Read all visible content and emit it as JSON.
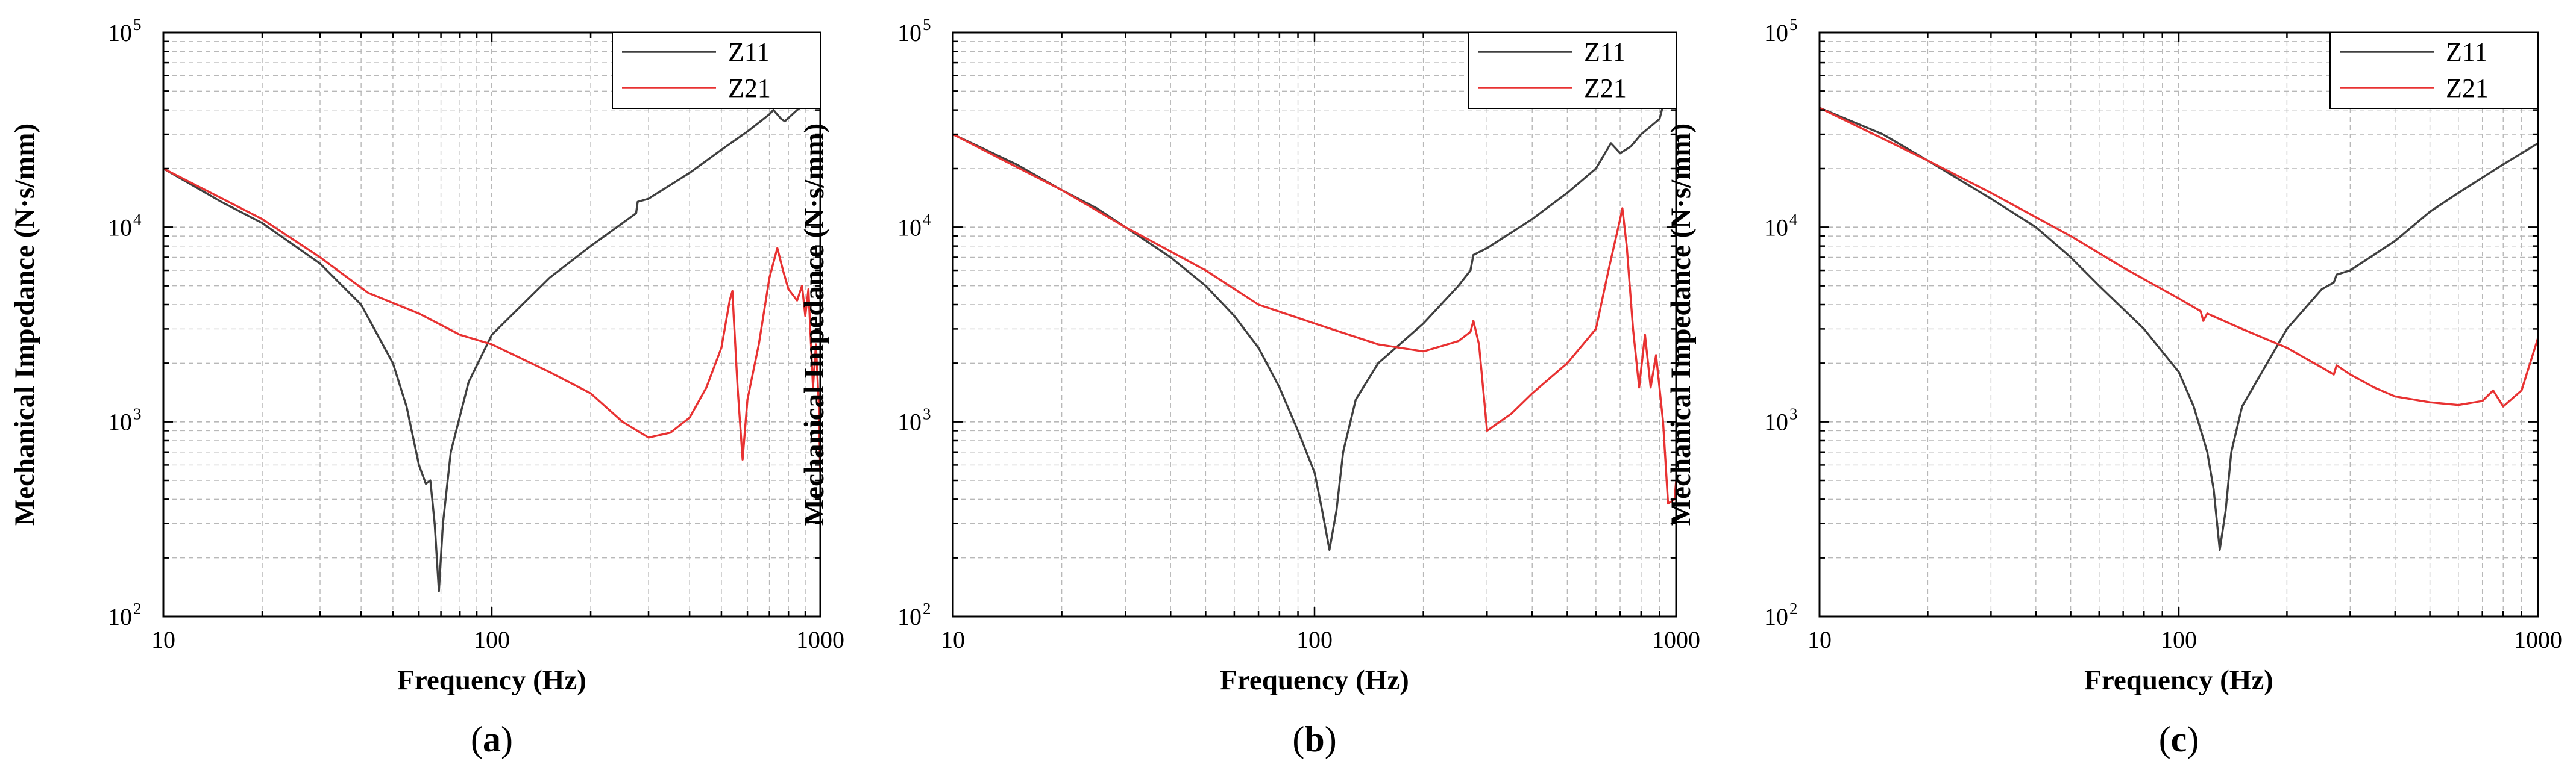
{
  "colors": {
    "Z11": "#404040",
    "Z21": "#e83232",
    "grid": "#b8b8b8",
    "axis": "#000000"
  },
  "panel_labels": [
    {
      "open": "(",
      "letter": "a",
      "close": ")"
    },
    {
      "open": "(",
      "letter": "b",
      "close": ")"
    },
    {
      "open": "(",
      "letter": "c",
      "close": ")"
    }
  ],
  "chart_data": [
    {
      "type": "line",
      "xlabel": "Frequency (Hz)",
      "ylabel": "Mechanical Impedance (N·s/mm)",
      "xscale": "log",
      "yscale": "log",
      "xlim": [
        10,
        1000
      ],
      "ylim": [
        100,
        100000
      ],
      "x_ticks": [
        "10",
        "100",
        "1000"
      ],
      "y_ticks": [
        {
          "base": "10",
          "exp": "2"
        },
        {
          "base": "10",
          "exp": "3"
        },
        {
          "base": "10",
          "exp": "4"
        },
        {
          "base": "10",
          "exp": "5"
        }
      ],
      "grid": "dashed major and minor",
      "legend": "top-right",
      "series": [
        {
          "name": "Z11",
          "color": "#404040",
          "points": [
            [
              10,
              20000
            ],
            [
              15,
              13500
            ],
            [
              20,
              10500
            ],
            [
              30,
              6500
            ],
            [
              40,
              4000
            ],
            [
              50,
              2000
            ],
            [
              55,
              1200
            ],
            [
              60,
              600
            ],
            [
              63,
              480
            ],
            [
              65,
              500
            ],
            [
              67,
              300
            ],
            [
              69,
              135
            ],
            [
              71,
              300
            ],
            [
              75,
              700
            ],
            [
              85,
              1600
            ],
            [
              100,
              2800
            ],
            [
              150,
              5500
            ],
            [
              200,
              8000
            ],
            [
              250,
              10500
            ],
            [
              275,
              11800
            ],
            [
              278,
              13500
            ],
            [
              300,
              14000
            ],
            [
              400,
              19000
            ],
            [
              500,
              25000
            ],
            [
              600,
              31000
            ],
            [
              700,
              38000
            ],
            [
              720,
              40000
            ],
            [
              760,
              36000
            ],
            [
              780,
              35000
            ],
            [
              850,
              40000
            ],
            [
              1000,
              49000
            ]
          ]
        },
        {
          "name": "Z21",
          "color": "#e83232",
          "points": [
            [
              10,
              20000
            ],
            [
              20,
              11000
            ],
            [
              30,
              7000
            ],
            [
              42,
              4600
            ],
            [
              60,
              3600
            ],
            [
              80,
              2800
            ],
            [
              100,
              2500
            ],
            [
              150,
              1800
            ],
            [
              200,
              1400
            ],
            [
              250,
              1000
            ],
            [
              300,
              830
            ],
            [
              350,
              880
            ],
            [
              400,
              1050
            ],
            [
              450,
              1500
            ],
            [
              500,
              2400
            ],
            [
              530,
              4200
            ],
            [
              540,
              4700
            ],
            [
              545,
              3500
            ],
            [
              560,
              1500
            ],
            [
              580,
              640
            ],
            [
              600,
              1300
            ],
            [
              650,
              2500
            ],
            [
              700,
              5500
            ],
            [
              740,
              7800
            ],
            [
              770,
              6000
            ],
            [
              800,
              4800
            ],
            [
              850,
              4200
            ],
            [
              880,
              5000
            ],
            [
              900,
              3500
            ],
            [
              920,
              4800
            ],
            [
              950,
              1500
            ],
            [
              970,
              2500
            ],
            [
              990,
              1200
            ],
            [
              1000,
              550
            ]
          ]
        }
      ]
    },
    {
      "type": "line",
      "xlabel": "Frequency (Hz)",
      "ylabel": "Mechanical Impedance (N·s/mm)",
      "xscale": "log",
      "yscale": "log",
      "xlim": [
        10,
        1000
      ],
      "ylim": [
        100,
        100000
      ],
      "x_ticks": [
        "10",
        "100",
        "1000"
      ],
      "y_ticks": [
        {
          "base": "10",
          "exp": "2"
        },
        {
          "base": "10",
          "exp": "3"
        },
        {
          "base": "10",
          "exp": "4"
        },
        {
          "base": "10",
          "exp": "5"
        }
      ],
      "grid": "dashed major and minor",
      "legend": "top-right",
      "series": [
        {
          "name": "Z11",
          "color": "#404040",
          "points": [
            [
              10,
              30000
            ],
            [
              15,
              21000
            ],
            [
              20,
              15500
            ],
            [
              25,
              12500
            ],
            [
              30,
              10000
            ],
            [
              40,
              7000
            ],
            [
              50,
              5000
            ],
            [
              60,
              3500
            ],
            [
              70,
              2400
            ],
            [
              80,
              1500
            ],
            [
              90,
              900
            ],
            [
              100,
              550
            ],
            [
              105,
              350
            ],
            [
              110,
              220
            ],
            [
              115,
              350
            ],
            [
              120,
              700
            ],
            [
              130,
              1300
            ],
            [
              150,
              2000
            ],
            [
              200,
              3200
            ],
            [
              250,
              5000
            ],
            [
              270,
              6000
            ],
            [
              275,
              7200
            ],
            [
              300,
              7800
            ],
            [
              400,
              11000
            ],
            [
              500,
              15000
            ],
            [
              600,
              20000
            ],
            [
              660,
              27000
            ],
            [
              700,
              24000
            ],
            [
              750,
              26000
            ],
            [
              800,
              30000
            ],
            [
              900,
              36000
            ],
            [
              950,
              53000
            ],
            [
              1000,
              55000
            ]
          ]
        },
        {
          "name": "Z21",
          "color": "#e83232",
          "points": [
            [
              10,
              30000
            ],
            [
              20,
              15500
            ],
            [
              30,
              10000
            ],
            [
              50,
              6000
            ],
            [
              70,
              4000
            ],
            [
              100,
              3200
            ],
            [
              150,
              2500
            ],
            [
              200,
              2300
            ],
            [
              250,
              2600
            ],
            [
              270,
              2900
            ],
            [
              275,
              3300
            ],
            [
              285,
              2500
            ],
            [
              300,
              900
            ],
            [
              350,
              1100
            ],
            [
              400,
              1400
            ],
            [
              500,
              2000
            ],
            [
              600,
              3000
            ],
            [
              650,
              6000
            ],
            [
              700,
              11000
            ],
            [
              710,
              12500
            ],
            [
              730,
              8000
            ],
            [
              760,
              3000
            ],
            [
              790,
              1500
            ],
            [
              820,
              2800
            ],
            [
              850,
              1500
            ],
            [
              880,
              2200
            ],
            [
              920,
              1000
            ],
            [
              950,
              380
            ],
            [
              990,
              400
            ],
            [
              1000,
              500
            ]
          ]
        }
      ]
    },
    {
      "type": "line",
      "xlabel": "Frequency (Hz)",
      "ylabel": "Mechanical Impedance (N·s/mm)",
      "xscale": "log",
      "yscale": "log",
      "xlim": [
        10,
        1000
      ],
      "ylim": [
        100,
        100000
      ],
      "x_ticks": [
        "10",
        "100",
        "1000"
      ],
      "y_ticks": [
        {
          "base": "10",
          "exp": "2"
        },
        {
          "base": "10",
          "exp": "3"
        },
        {
          "base": "10",
          "exp": "4"
        },
        {
          "base": "10",
          "exp": "5"
        }
      ],
      "grid": "dashed major and minor",
      "legend": "top-right",
      "series": [
        {
          "name": "Z11",
          "color": "#404040",
          "points": [
            [
              10,
              41000
            ],
            [
              15,
              30000
            ],
            [
              20,
              22000
            ],
            [
              30,
              14000
            ],
            [
              40,
              10000
            ],
            [
              50,
              7000
            ],
            [
              60,
              5000
            ],
            [
              80,
              3000
            ],
            [
              100,
              1800
            ],
            [
              110,
              1200
            ],
            [
              120,
              700
            ],
            [
              125,
              450
            ],
            [
              130,
              220
            ],
            [
              135,
              350
            ],
            [
              140,
              700
            ],
            [
              150,
              1200
            ],
            [
              200,
              3000
            ],
            [
              250,
              4800
            ],
            [
              270,
              5200
            ],
            [
              275,
              5700
            ],
            [
              300,
              6000
            ],
            [
              400,
              8500
            ],
            [
              500,
              12000
            ],
            [
              600,
              15000
            ],
            [
              800,
              21000
            ],
            [
              1000,
              27000
            ]
          ]
        },
        {
          "name": "Z21",
          "color": "#e83232",
          "points": [
            [
              10,
              41000
            ],
            [
              20,
              22000
            ],
            [
              30,
              15000
            ],
            [
              50,
              9000
            ],
            [
              70,
              6200
            ],
            [
              100,
              4300
            ],
            [
              115,
              3700
            ],
            [
              117,
              3300
            ],
            [
              120,
              3600
            ],
            [
              150,
              3000
            ],
            [
              200,
              2400
            ],
            [
              250,
              1900
            ],
            [
              270,
              1750
            ],
            [
              275,
              1950
            ],
            [
              300,
              1750
            ],
            [
              350,
              1500
            ],
            [
              400,
              1350
            ],
            [
              500,
              1260
            ],
            [
              600,
              1220
            ],
            [
              700,
              1280
            ],
            [
              750,
              1450
            ],
            [
              800,
              1200
            ],
            [
              900,
              1450
            ],
            [
              1000,
              2700
            ]
          ]
        }
      ]
    }
  ]
}
